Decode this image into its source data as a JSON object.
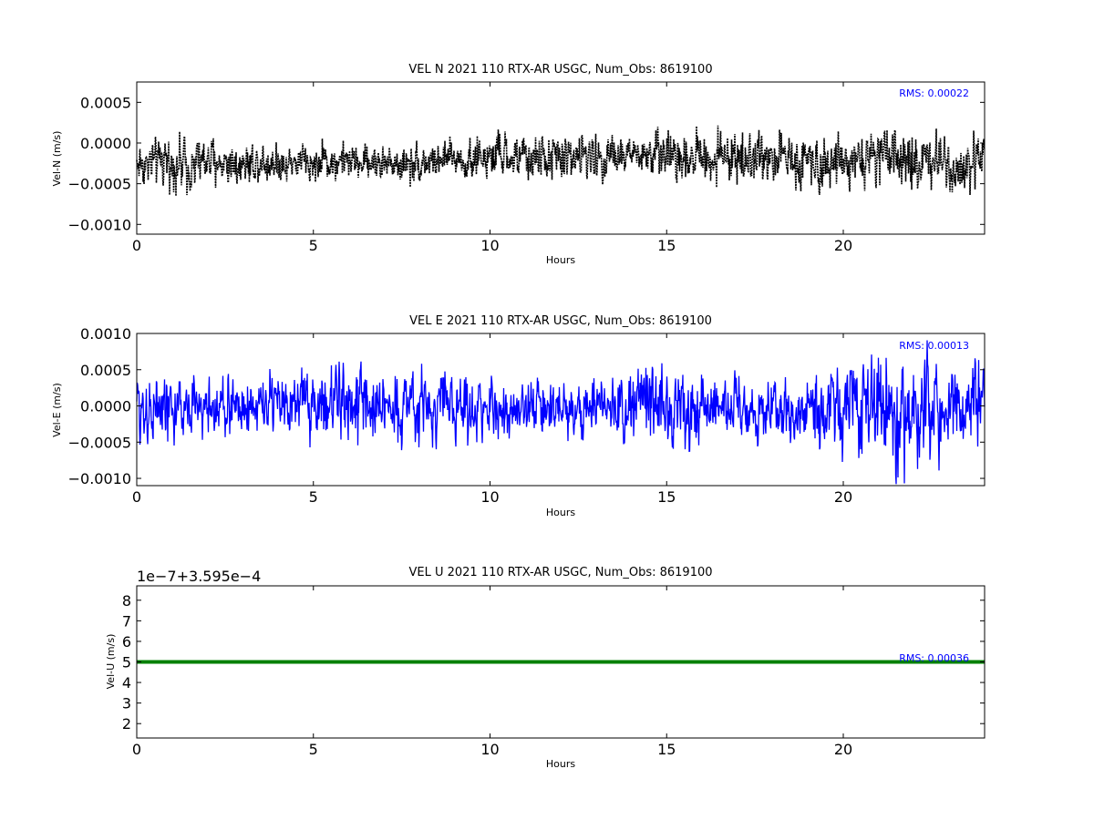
{
  "chart_data": [
    {
      "type": "line",
      "title": "VEL N 2021 110 RTX-AR  USGC, Num_Obs: 8619100",
      "xlabel": "Hours",
      "ylabel": "Vel-N (m/s)",
      "xlim": [
        0,
        24
      ],
      "ylim": [
        -0.00112,
        0.00075
      ],
      "x_ticks": [
        0,
        5,
        10,
        15,
        20
      ],
      "x_tick_labels": [
        "0",
        "5",
        "10",
        "15",
        "20"
      ],
      "y_ticks": [
        -0.001,
        -0.0005,
        0.0,
        0.0005
      ],
      "y_tick_labels": [
        "−0.0010",
        "−0.0005",
        "0.0000",
        "0.0005"
      ],
      "color": "#000000",
      "style": "dotted-dense",
      "rms_label": "RMS:  0.00022",
      "series": [
        {
          "x": [
            0,
            1,
            1.5,
            2,
            3,
            4,
            5,
            6,
            7,
            8,
            9,
            10,
            11,
            12,
            13,
            14,
            15,
            16,
            17,
            18,
            19,
            19.6,
            20,
            21,
            22,
            22.6,
            23,
            24
          ],
          "center": [
            -0.00025,
            -0.00025,
            -0.00025,
            -0.00024,
            -0.00024,
            -0.00023,
            -0.00023,
            -0.00023,
            -0.00024,
            -0.00024,
            -0.0002,
            -0.00018,
            -0.00018,
            -0.00017,
            -0.00016,
            -0.00017,
            -0.00014,
            -0.00016,
            -0.00017,
            -0.00018,
            -0.00019,
            -0.0002,
            -0.0002,
            -0.0002,
            -0.00022,
            -0.00023,
            -0.00024,
            -0.00024
          ],
          "amplitude": [
            0.0003,
            0.00034,
            0.00038,
            0.00034,
            0.00029,
            0.00026,
            0.00025,
            0.00024,
            0.00024,
            0.00027,
            0.00028,
            0.0003,
            0.0003,
            0.00032,
            0.00031,
            0.00027,
            0.00033,
            0.00034,
            0.00032,
            0.00032,
            0.00036,
            0.0004,
            0.00035,
            0.00033,
            0.00042,
            0.0005,
            0.0004,
            0.00036
          ]
        }
      ]
    },
    {
      "type": "line",
      "title": "VEL E 2021 110 RTX-AR  USGC, Num_Obs: 8619100",
      "xlabel": "Hours",
      "ylabel": "Vel-E (m/s)",
      "xlim": [
        0,
        24
      ],
      "ylim": [
        -0.0011,
        0.001
      ],
      "x_ticks": [
        0,
        5,
        10,
        15,
        20
      ],
      "x_tick_labels": [
        "0",
        "5",
        "10",
        "15",
        "20"
      ],
      "y_ticks": [
        -0.001,
        -0.0005,
        0.0,
        0.0005,
        0.001
      ],
      "y_tick_labels": [
        "−0.0010",
        "−0.0005",
        "0.0000",
        "0.0005",
        "0.0010"
      ],
      "color": "#0000ff",
      "style": "line",
      "rms_label": "RMS:  0.00013",
      "series": [
        {
          "x": [
            0,
            1,
            2,
            3,
            4,
            5,
            6,
            7,
            8,
            9,
            10,
            11,
            12,
            13,
            14,
            14.5,
            15,
            16,
            17,
            18,
            19,
            20,
            20.8,
            21.5,
            22,
            23,
            24
          ],
          "center": [
            0.0,
            -3e-05,
            -2e-05,
            0.0,
            2e-05,
            2e-05,
            2e-05,
            2e-05,
            0.0,
            -1e-05,
            -4e-05,
            -4e-05,
            -4e-05,
            -4e-05,
            1e-05,
            2e-05,
            1e-05,
            -2e-05,
            -3e-05,
            -5e-05,
            -5e-05,
            -3e-05,
            0.0,
            -2e-05,
            -4e-05,
            -1e-05,
            -1e-05
          ],
          "amplitude": [
            0.0006,
            0.00045,
            0.00045,
            0.00047,
            0.00047,
            0.00052,
            0.00053,
            0.00053,
            0.00055,
            0.00048,
            0.00042,
            0.0004,
            0.00042,
            0.00043,
            0.00055,
            0.00062,
            0.0006,
            0.0005,
            0.00045,
            0.00045,
            0.0005,
            0.00065,
            0.00085,
            0.00095,
            0.00085,
            0.00075,
            0.0007
          ]
        }
      ]
    },
    {
      "type": "line",
      "title": "VEL U 2021 110 RTX-AR  USGC, Num_Obs: 8619100",
      "xlabel": "Hours",
      "ylabel": "Vel-U (m/s)",
      "xlim": [
        0,
        24
      ],
      "ylim": [
        1.3,
        8.7
      ],
      "offset_label": "1e−7+3.595e−4",
      "x_ticks": [
        0,
        5,
        10,
        15,
        20
      ],
      "x_tick_labels": [
        "0",
        "5",
        "10",
        "15",
        "20"
      ],
      "y_ticks": [
        2,
        3,
        4,
        5,
        6,
        7,
        8
      ],
      "y_tick_labels": [
        "2",
        "3",
        "4",
        "5",
        "6",
        "7",
        "8"
      ],
      "color": "#008000",
      "style": "flat",
      "rms_label": "RMS:  0.00036",
      "series": [
        {
          "x": [
            0,
            24
          ],
          "y": [
            5.0,
            5.0
          ]
        }
      ]
    }
  ]
}
